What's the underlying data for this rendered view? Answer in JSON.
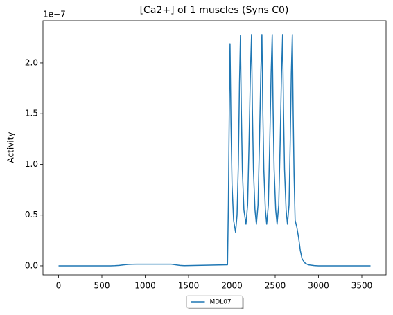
{
  "chart_data": {
    "type": "line",
    "title": "[Ca2+] of 1 muscles (Syns C0)",
    "y_label": "Activity",
    "y_offset_label": "1e−7",
    "x": [
      0,
      600,
      650,
      700,
      750,
      800,
      850,
      900,
      1300,
      1350,
      1400,
      1450,
      1950,
      1960,
      1970,
      1979,
      1990,
      2002,
      2020,
      2043,
      2060,
      2075,
      2088,
      2099,
      2109,
      2121,
      2139,
      2163,
      2182,
      2198,
      2214,
      2227,
      2237,
      2249,
      2267,
      2283,
      2302,
      2318,
      2334,
      2347,
      2357,
      2369,
      2387,
      2402,
      2421,
      2437,
      2453,
      2466,
      2476,
      2488,
      2506,
      2522,
      2541,
      2557,
      2573,
      2586,
      2596,
      2608,
      2626,
      2642,
      2660,
      2673,
      2686,
      2698,
      2708,
      2718,
      2730,
      2750,
      2770,
      2790,
      2810,
      2840,
      2880,
      2950,
      3000,
      3600
    ],
    "series": [
      {
        "name": "MDL07",
        "color": "#1f77b4",
        "values": [
          0,
          0,
          0.001,
          0.004,
          0.009,
          0.013,
          0.015,
          0.016,
          0.016,
          0.01,
          0.004,
          0.001,
          0.01,
          0.6,
          1.5,
          2.19,
          1.4,
          0.8,
          0.45,
          0.33,
          0.5,
          1.0,
          1.8,
          2.27,
          1.55,
          0.95,
          0.55,
          0.41,
          0.6,
          1.2,
          1.9,
          2.28,
          1.55,
          0.95,
          0.55,
          0.41,
          0.6,
          1.2,
          1.9,
          2.28,
          1.55,
          0.95,
          0.55,
          0.41,
          0.6,
          1.2,
          1.9,
          2.28,
          1.55,
          0.95,
          0.55,
          0.41,
          0.6,
          1.2,
          1.9,
          2.28,
          1.55,
          0.95,
          0.55,
          0.41,
          0.6,
          1.2,
          1.9,
          2.28,
          1.5,
          0.9,
          0.45,
          0.38,
          0.28,
          0.15,
          0.07,
          0.03,
          0.01,
          0.002,
          0,
          0
        ]
      }
    ],
    "xlim": [
      -180,
      3780
    ],
    "xticks": [
      0,
      500,
      1000,
      1500,
      2000,
      2500,
      3000,
      3500
    ],
    "ylim": [
      -0.089,
      2.416
    ],
    "yticks": [
      {
        "value": 0,
        "label": "0.0"
      },
      {
        "value": 0.5,
        "label": "0.5"
      },
      {
        "value": 1,
        "label": "1.0"
      },
      {
        "value": 1.5,
        "label": "1.5"
      },
      {
        "value": 2,
        "label": "2.0"
      }
    ],
    "legend": "lower center"
  }
}
